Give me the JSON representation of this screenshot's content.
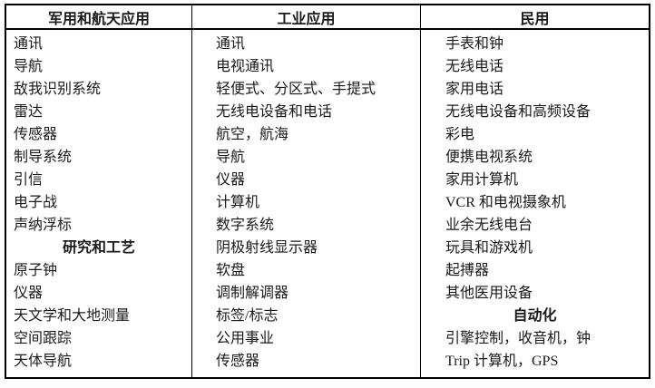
{
  "table": {
    "colors": {
      "border": "#000000",
      "text": "#1a1a1a",
      "background": "#ffffff"
    },
    "columns": [
      {
        "header": "军用和航天应用",
        "rows": [
          {
            "text": "通讯"
          },
          {
            "text": "导航"
          },
          {
            "text": "敌我识别系统"
          },
          {
            "text": "雷达"
          },
          {
            "text": "传感器"
          },
          {
            "text": "制导系统"
          },
          {
            "text": "引信"
          },
          {
            "text": "电子战"
          },
          {
            "text": "声纳浮标"
          },
          {
            "text": "研究和工艺",
            "subheader": true
          },
          {
            "text": "原子钟"
          },
          {
            "text": "仪器"
          },
          {
            "text": "天文学和大地测量"
          },
          {
            "text": "空间跟踪"
          },
          {
            "text": "天体导航"
          }
        ]
      },
      {
        "header": "工业应用",
        "rows": [
          {
            "text": "通讯"
          },
          {
            "text": "电视通讯"
          },
          {
            "text": "轻便式、分区式、手提式"
          },
          {
            "text": "无线电设备和电话"
          },
          {
            "text": "航空，航海"
          },
          {
            "text": "导航"
          },
          {
            "text": "仪器"
          },
          {
            "text": "计算机"
          },
          {
            "text": "数字系统"
          },
          {
            "text": "阴极射线显示器"
          },
          {
            "text": "软盘"
          },
          {
            "text": "调制解调器"
          },
          {
            "text": "标签/标志"
          },
          {
            "text": "公用事业"
          },
          {
            "text": "传感器"
          }
        ]
      },
      {
        "header": "民用",
        "rows": [
          {
            "text": "手表和钟"
          },
          {
            "text": "无线电话"
          },
          {
            "text": "家用电话"
          },
          {
            "text": "无线电设备和高频设备"
          },
          {
            "text": "彩电"
          },
          {
            "text": "便携电视系统"
          },
          {
            "text": "家用计算机"
          },
          {
            "text": "VCR 和电视摄象机"
          },
          {
            "text": "业余无线电台"
          },
          {
            "text": "玩具和游戏机"
          },
          {
            "text": "起搏器"
          },
          {
            "text": "其他医用设备"
          },
          {
            "text": "自动化",
            "subheader": true
          },
          {
            "text": "引擎控制，收音机，钟"
          },
          {
            "text": "Trip 计算机，GPS"
          }
        ]
      }
    ]
  }
}
